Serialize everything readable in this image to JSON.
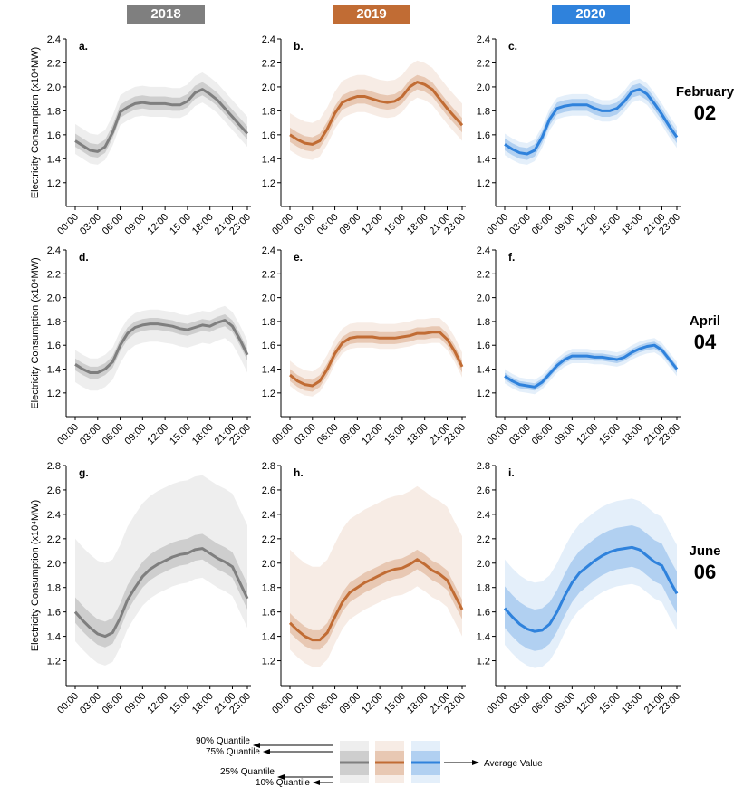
{
  "years": [
    {
      "label": "2018",
      "color": "#7f7f7f"
    },
    {
      "label": "2019",
      "color": "#c16c34"
    },
    {
      "label": "2020",
      "color": "#2f82dc"
    }
  ],
  "months": [
    {
      "name": "February",
      "num": "02"
    },
    {
      "name": "April",
      "num": "04"
    },
    {
      "name": "June",
      "num": "06"
    }
  ],
  "legend": {
    "q90": "90% Quantile",
    "q75": "75% Quantile",
    "q25": "25% Quantile",
    "q10": "10% Quantile",
    "avg": "Average Value"
  },
  "chart_data": {
    "type": "line",
    "title": "",
    "ylabel": "Electricity Consumption (x10⁴MW)",
    "xticks": [
      "00:00",
      "03:00",
      "06:00",
      "09:00",
      "12:00",
      "15:00",
      "18:00",
      "21:00",
      "23:00"
    ],
    "xrange": [
      0,
      23
    ],
    "rows": [
      {
        "ylim": [
          1.1,
          2.4
        ],
        "yticks": [
          "1.2",
          "1.4",
          "1.6",
          "1.8",
          "2.0",
          "2.2",
          "2.4"
        ]
      },
      {
        "ylim": [
          1.1,
          2.4
        ],
        "yticks": [
          "1.2",
          "1.4",
          "1.6",
          "1.8",
          "2.0",
          "2.2",
          "2.4"
        ]
      },
      {
        "ylim": [
          1.1,
          2.8
        ],
        "yticks": [
          "1.2",
          "1.4",
          "1.6",
          "1.8",
          "2.0",
          "2.2",
          "2.4",
          "2.6",
          "2.8"
        ]
      }
    ],
    "panels": [
      {
        "label": "a.",
        "row": 0,
        "col": 0,
        "mean": [
          1.55,
          1.51,
          1.47,
          1.46,
          1.5,
          1.62,
          1.79,
          1.83,
          1.86,
          1.87,
          1.86,
          1.86,
          1.86,
          1.85,
          1.85,
          1.88,
          1.95,
          1.98,
          1.94,
          1.89,
          1.82,
          1.75,
          1.68,
          1.61
        ],
        "q75w": 0.06,
        "q25w": 0.05,
        "q90w": 0.14,
        "q10w": 0.11
      },
      {
        "label": "b.",
        "row": 0,
        "col": 1,
        "mean": [
          1.6,
          1.56,
          1.53,
          1.52,
          1.55,
          1.65,
          1.78,
          1.87,
          1.9,
          1.92,
          1.92,
          1.9,
          1.88,
          1.87,
          1.88,
          1.92,
          2.0,
          2.04,
          2.02,
          1.98,
          1.9,
          1.82,
          1.75,
          1.68
        ],
        "q75w": 0.06,
        "q25w": 0.06,
        "q90w": 0.18,
        "q10w": 0.13
      },
      {
        "label": "c.",
        "row": 0,
        "col": 2,
        "mean": [
          1.52,
          1.48,
          1.45,
          1.44,
          1.47,
          1.58,
          1.73,
          1.82,
          1.84,
          1.85,
          1.85,
          1.85,
          1.82,
          1.8,
          1.8,
          1.82,
          1.88,
          1.96,
          1.98,
          1.94,
          1.86,
          1.77,
          1.67,
          1.58
        ],
        "q75w": 0.05,
        "q25w": 0.05,
        "q90w": 0.09,
        "q10w": 0.09
      },
      {
        "label": "d.",
        "row": 1,
        "col": 0,
        "mean": [
          1.44,
          1.4,
          1.37,
          1.37,
          1.4,
          1.46,
          1.6,
          1.7,
          1.75,
          1.77,
          1.78,
          1.78,
          1.77,
          1.76,
          1.74,
          1.73,
          1.75,
          1.77,
          1.76,
          1.79,
          1.81,
          1.76,
          1.65,
          1.52
        ],
        "q75w": 0.05,
        "q25w": 0.05,
        "q90w": 0.12,
        "q10w": 0.15
      },
      {
        "label": "e.",
        "row": 1,
        "col": 1,
        "mean": [
          1.35,
          1.3,
          1.27,
          1.26,
          1.3,
          1.4,
          1.53,
          1.62,
          1.66,
          1.67,
          1.67,
          1.67,
          1.66,
          1.66,
          1.66,
          1.67,
          1.68,
          1.7,
          1.7,
          1.71,
          1.71,
          1.65,
          1.55,
          1.42
        ],
        "q75w": 0.05,
        "q25w": 0.05,
        "q90w": 0.12,
        "q10w": 0.09
      },
      {
        "label": "f.",
        "row": 1,
        "col": 2,
        "mean": [
          1.34,
          1.3,
          1.27,
          1.26,
          1.25,
          1.29,
          1.36,
          1.43,
          1.48,
          1.51,
          1.51,
          1.51,
          1.5,
          1.5,
          1.49,
          1.48,
          1.5,
          1.54,
          1.57,
          1.59,
          1.6,
          1.56,
          1.48,
          1.4
        ],
        "q75w": 0.03,
        "q25w": 0.03,
        "q90w": 0.06,
        "q10w": 0.06
      },
      {
        "label": "g.",
        "row": 2,
        "col": 0,
        "mean": [
          1.6,
          1.53,
          1.47,
          1.42,
          1.4,
          1.43,
          1.55,
          1.7,
          1.8,
          1.89,
          1.95,
          1.99,
          2.02,
          2.05,
          2.07,
          2.08,
          2.11,
          2.12,
          2.08,
          2.04,
          2.01,
          1.97,
          1.84,
          1.71
        ],
        "q75w": 0.12,
        "q25w": 0.09,
        "q90w": 0.6,
        "q10w": 0.24
      },
      {
        "label": "h.",
        "row": 2,
        "col": 1,
        "mean": [
          1.51,
          1.45,
          1.4,
          1.37,
          1.37,
          1.43,
          1.56,
          1.68,
          1.76,
          1.8,
          1.84,
          1.87,
          1.9,
          1.93,
          1.95,
          1.96,
          1.99,
          2.03,
          1.99,
          1.94,
          1.91,
          1.86,
          1.74,
          1.62
        ],
        "q75w": 0.08,
        "q25w": 0.08,
        "q90w": 0.6,
        "q10w": 0.22
      },
      {
        "label": "i.",
        "row": 2,
        "col": 2,
        "mean": [
          1.63,
          1.56,
          1.5,
          1.46,
          1.44,
          1.45,
          1.5,
          1.6,
          1.73,
          1.84,
          1.92,
          1.97,
          2.02,
          2.06,
          2.09,
          2.11,
          2.12,
          2.13,
          2.11,
          2.06,
          2.01,
          1.98,
          1.86,
          1.75
        ],
        "q75w": 0.18,
        "q25w": 0.16,
        "q90w": 0.4,
        "q10w": 0.3
      }
    ]
  }
}
